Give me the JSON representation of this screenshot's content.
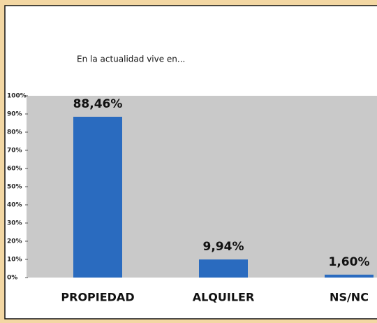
{
  "chart_data": {
    "type": "bar",
    "title": "En la actualidad vive en...",
    "categories": [
      "PROPIEDAD",
      "ALQUILER",
      "NS/NC"
    ],
    "values": [
      88.46,
      9.94,
      1.6
    ],
    "value_labels": [
      "88,46%",
      "9,94%",
      "1,60%"
    ],
    "color": "#2a6bbf",
    "ylim": [
      0,
      100
    ],
    "yticks": [
      {
        "value": 0,
        "label": "0%"
      },
      {
        "value": 10,
        "label": "10%"
      },
      {
        "value": 20,
        "label": "20%"
      },
      {
        "value": 30,
        "label": "30%"
      },
      {
        "value": 40,
        "label": "40%"
      },
      {
        "value": 50,
        "label": "50%"
      },
      {
        "value": 60,
        "label": "60%"
      },
      {
        "value": 70,
        "label": "70%"
      },
      {
        "value": 80,
        "label": "80%"
      },
      {
        "value": 90,
        "label": "90%"
      },
      {
        "value": 100,
        "label": "100%"
      }
    ],
    "grid": false
  }
}
